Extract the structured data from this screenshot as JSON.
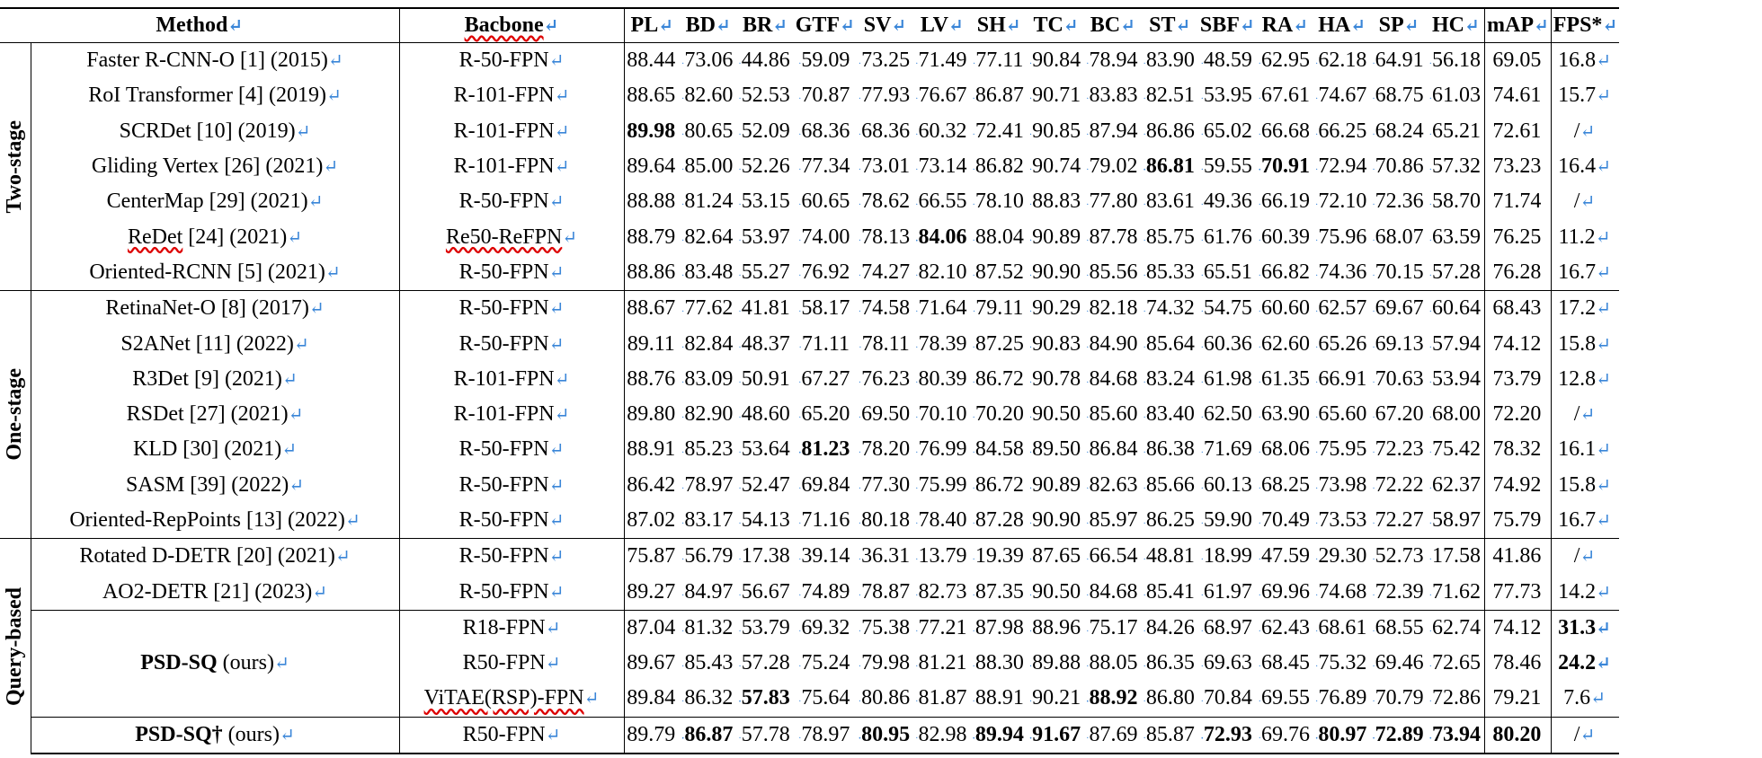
{
  "headers": {
    "method": "Method",
    "backbone": "Bacbone",
    "cols": [
      "PL",
      "BD",
      "BR",
      "GTF",
      "SV",
      "LV",
      "SH",
      "TC",
      "BC",
      "ST",
      "SBF",
      "RA",
      "HA",
      "SP",
      "HC",
      "mAP",
      "FPS*"
    ]
  },
  "marker": "↵",
  "groups": [
    {
      "name": "Two-stage",
      "rows": [
        {
          "method": "Faster R-CNN-O [1] (2015)",
          "backbone": "R-50-FPN",
          "values": [
            "88.44",
            "73.06",
            "44.86",
            "59.09",
            "73.25",
            "71.49",
            "77.11",
            "90.84",
            "78.94",
            "83.90",
            "48.59",
            "62.95",
            "62.18",
            "64.91",
            "56.18",
            "69.05",
            "16.8"
          ]
        },
        {
          "method": "RoI Transformer [4] (2019)",
          "backbone": "R-101-FPN",
          "values": [
            "88.65",
            "82.60",
            "52.53",
            "70.87",
            "77.93",
            "76.67",
            "86.87",
            "90.71",
            "83.83",
            "82.51",
            "53.95",
            "67.61",
            "74.67",
            "68.75",
            "61.03",
            "74.61",
            "15.7"
          ]
        },
        {
          "method": "SCRDet [10] (2019)",
          "backbone": "R-101-FPN",
          "values": [
            "89.98",
            "80.65",
            "52.09",
            "68.36",
            "68.36",
            "60.32",
            "72.41",
            "90.85",
            "87.94",
            "86.86",
            "65.02",
            "66.68",
            "66.25",
            "68.24",
            "65.21",
            "72.61",
            "/"
          ]
        },
        {
          "method": "Gliding Vertex [26] (2021)",
          "backbone": "R-101-FPN",
          "values": [
            "89.64",
            "85.00",
            "52.26",
            "77.34",
            "73.01",
            "73.14",
            "86.82",
            "90.74",
            "79.02",
            "86.81",
            "59.55",
            "70.91",
            "72.94",
            "70.86",
            "57.32",
            "73.23",
            "16.4"
          ]
        },
        {
          "method": "CenterMap [29] (2021)",
          "backbone": "R-50-FPN",
          "values": [
            "88.88",
            "81.24",
            "53.15",
            "60.65",
            "78.62",
            "66.55",
            "78.10",
            "88.83",
            "77.80",
            "83.61",
            "49.36",
            "66.19",
            "72.10",
            "72.36",
            "58.70",
            "71.74",
            "/"
          ]
        },
        {
          "method": "ReDet [24] (2021)",
          "backbone": "Re50-ReFPN",
          "values": [
            "88.79",
            "82.64",
            "53.97",
            "74.00",
            "78.13",
            "84.06",
            "88.04",
            "90.89",
            "87.78",
            "85.75",
            "61.76",
            "60.39",
            "75.96",
            "68.07",
            "63.59",
            "76.25",
            "11.2"
          ]
        },
        {
          "method": "Oriented-RCNN [5] (2021)",
          "backbone": "R-50-FPN",
          "values": [
            "88.86",
            "83.48",
            "55.27",
            "76.92",
            "74.27",
            "82.10",
            "87.52",
            "90.90",
            "85.56",
            "85.33",
            "65.51",
            "66.82",
            "74.36",
            "70.15",
            "57.28",
            "76.28",
            "16.7"
          ]
        }
      ]
    },
    {
      "name": "One-stage",
      "rows": [
        {
          "method": "RetinaNet-O [8] (2017)",
          "backbone": "R-50-FPN",
          "values": [
            "88.67",
            "77.62",
            "41.81",
            "58.17",
            "74.58",
            "71.64",
            "79.11",
            "90.29",
            "82.18",
            "74.32",
            "54.75",
            "60.60",
            "62.57",
            "69.67",
            "60.64",
            "68.43",
            "17.2"
          ]
        },
        {
          "method": "S2ANet [11] (2022)",
          "backbone": "R-50-FPN",
          "values": [
            "89.11",
            "82.84",
            "48.37",
            "71.11",
            "78.11",
            "78.39",
            "87.25",
            "90.83",
            "84.90",
            "85.64",
            "60.36",
            "62.60",
            "65.26",
            "69.13",
            "57.94",
            "74.12",
            "15.8"
          ]
        },
        {
          "method": "R3Det [9] (2021)",
          "backbone": "R-101-FPN",
          "values": [
            "88.76",
            "83.09",
            "50.91",
            "67.27",
            "76.23",
            "80.39",
            "86.72",
            "90.78",
            "84.68",
            "83.24",
            "61.98",
            "61.35",
            "66.91",
            "70.63",
            "53.94",
            "73.79",
            "12.8"
          ]
        },
        {
          "method": "RSDet [27] (2021)",
          "backbone": "R-101-FPN",
          "values": [
            "89.80",
            "82.90",
            "48.60",
            "65.20",
            "69.50",
            "70.10",
            "70.20",
            "90.50",
            "85.60",
            "83.40",
            "62.50",
            "63.90",
            "65.60",
            "67.20",
            "68.00",
            "72.20",
            "/"
          ]
        },
        {
          "method": "KLD [30] (2021)",
          "backbone": "R-50-FPN",
          "values": [
            "88.91",
            "85.23",
            "53.64",
            "81.23",
            "78.20",
            "76.99",
            "84.58",
            "89.50",
            "86.84",
            "86.38",
            "71.69",
            "68.06",
            "75.95",
            "72.23",
            "75.42",
            "78.32",
            "16.1"
          ]
        },
        {
          "method": "SASM [39] (2022)",
          "backbone": "R-50-FPN",
          "values": [
            "86.42",
            "78.97",
            "52.47",
            "69.84",
            "77.30",
            "75.99",
            "86.72",
            "90.89",
            "82.63",
            "85.66",
            "60.13",
            "68.25",
            "73.98",
            "72.22",
            "62.37",
            "74.92",
            "15.8"
          ]
        },
        {
          "method": "Oriented-RepPoints [13] (2022)",
          "backbone": "R-50-FPN",
          "values": [
            "87.02",
            "83.17",
            "54.13",
            "71.16",
            "80.18",
            "78.40",
            "87.28",
            "90.90",
            "85.97",
            "86.25",
            "59.90",
            "70.49",
            "73.53",
            "72.27",
            "58.97",
            "75.79",
            "16.7"
          ]
        }
      ]
    },
    {
      "name": "Query-based",
      "rows": [
        {
          "method": "Rotated D-DETR [20] (2021)",
          "backbone": "R-50-FPN",
          "values": [
            "75.87",
            "56.79",
            "17.38",
            "39.14",
            "36.31",
            "13.79",
            "19.39",
            "87.65",
            "66.54",
            "48.81",
            "18.99",
            "47.59",
            "29.30",
            "52.73",
            "17.58",
            "41.86",
            "/"
          ]
        },
        {
          "method": "AO2-DETR [21] (2023)",
          "backbone": "R-50-FPN",
          "values": [
            "89.27",
            "84.97",
            "56.67",
            "74.89",
            "78.87",
            "82.73",
            "87.35",
            "90.50",
            "84.68",
            "85.41",
            "61.97",
            "69.96",
            "74.68",
            "72.39",
            "71.62",
            "77.73",
            "14.2"
          ]
        },
        {
          "method_bold": "PSD-SQ",
          "method_rest": "(ours)",
          "backbone": "R18-FPN",
          "values": [
            "87.04",
            "81.32",
            "53.79",
            "69.32",
            "75.38",
            "77.21",
            "87.98",
            "88.96",
            "75.17",
            "84.26",
            "68.97",
            "62.43",
            "68.61",
            "68.55",
            "62.74",
            "74.12",
            "31.3"
          ]
        },
        {
          "backbone": "R50-FPN",
          "values": [
            "89.67",
            "85.43",
            "57.28",
            "75.24",
            "79.98",
            "81.21",
            "88.30",
            "89.88",
            "88.05",
            "86.35",
            "69.63",
            "68.45",
            "75.32",
            "69.46",
            "72.65",
            "78.46",
            "24.2"
          ]
        },
        {
          "backbone": "ViTAE(RSP)-FPN",
          "values": [
            "89.84",
            "86.32",
            "57.83",
            "75.64",
            "80.86",
            "81.87",
            "88.91",
            "90.21",
            "88.92",
            "86.80",
            "70.84",
            "69.55",
            "76.89",
            "70.79",
            "72.86",
            "79.21",
            "7.6"
          ]
        },
        {
          "method_bold": "PSD-SQ†",
          "method_rest": "(ours)",
          "backbone": "R50-FPN",
          "values": [
            "89.79",
            "86.87",
            "57.78",
            "78.97",
            "80.95",
            "82.98",
            "89.94",
            "91.67",
            "87.69",
            "85.87",
            "72.93",
            "69.76",
            "80.97",
            "72.89",
            "73.94",
            "80.20",
            "/"
          ]
        }
      ]
    }
  ],
  "bold_cells": [
    [
      2,
      0
    ],
    [
      3,
      9
    ],
    [
      3,
      11
    ],
    [
      5,
      5
    ],
    [
      11,
      3
    ],
    [
      16,
      16
    ],
    [
      17,
      16
    ],
    [
      18,
      2
    ],
    [
      18,
      8
    ],
    [
      19,
      1
    ],
    [
      19,
      4
    ],
    [
      19,
      6
    ],
    [
      19,
      7
    ],
    [
      19,
      10
    ],
    [
      19,
      12
    ],
    [
      19,
      13
    ],
    [
      19,
      14
    ],
    [
      19,
      15
    ]
  ]
}
